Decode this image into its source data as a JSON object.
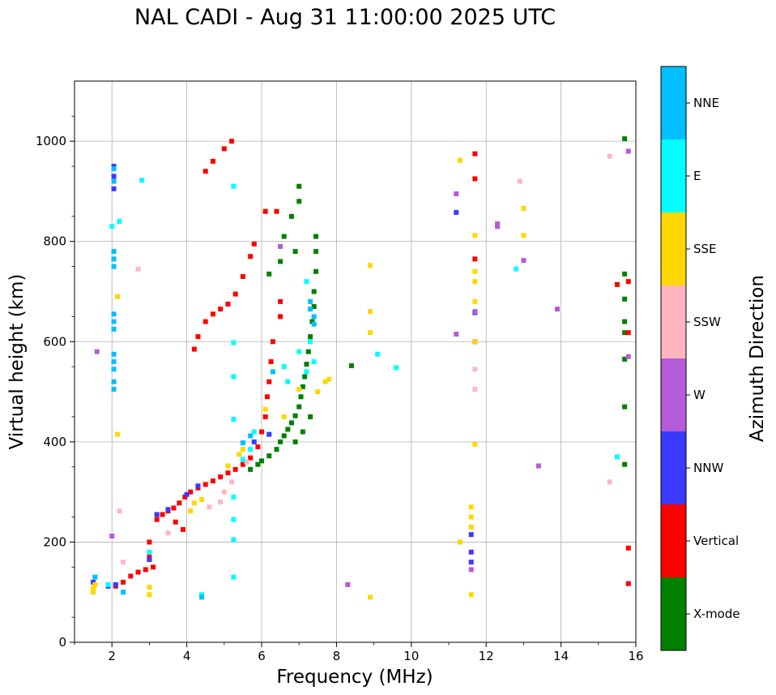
{
  "chart_data": {
    "type": "scatter",
    "title": "NAL CADI - Aug 31 11:00:00 2025 UTC",
    "xlabel": "Frequency (MHz)",
    "ylabel": "Virtual height (km)",
    "xlim": [
      1,
      16
    ],
    "ylim": [
      0,
      1120
    ],
    "xticks": [
      2,
      4,
      6,
      8,
      10,
      12,
      14,
      16
    ],
    "yticks": [
      0,
      200,
      400,
      600,
      800,
      1000
    ],
    "grid": true,
    "colorbar": {
      "label": "Azimuth Direction",
      "categories": [
        {
          "name": "X-mode",
          "color": "#008000"
        },
        {
          "name": "Vertical",
          "color": "#ff0000"
        },
        {
          "name": "NNW",
          "color": "#3a3aff"
        },
        {
          "name": "W",
          "color": "#b55ad8"
        },
        {
          "name": "SSW",
          "color": "#ffb6c1"
        },
        {
          "name": "SSE",
          "color": "#ffd700"
        },
        {
          "name": "E",
          "color": "#00ffff"
        },
        {
          "name": "NNE",
          "color": "#00bfff"
        }
      ]
    },
    "series": [
      {
        "name": "X-mode",
        "points": [
          [
            5.7,
            345
          ],
          [
            5.9,
            355
          ],
          [
            6.0,
            362
          ],
          [
            6.2,
            372
          ],
          [
            6.4,
            385
          ],
          [
            6.5,
            400
          ],
          [
            6.6,
            412
          ],
          [
            6.7,
            425
          ],
          [
            6.8,
            438
          ],
          [
            6.9,
            452
          ],
          [
            7.0,
            470
          ],
          [
            7.05,
            490
          ],
          [
            7.1,
            510
          ],
          [
            7.15,
            530
          ],
          [
            7.2,
            555
          ],
          [
            7.25,
            580
          ],
          [
            7.3,
            610
          ],
          [
            7.35,
            640
          ],
          [
            7.4,
            670
          ],
          [
            7.4,
            700
          ],
          [
            7.45,
            740
          ],
          [
            7.45,
            780
          ],
          [
            7.45,
            810
          ],
          [
            7.0,
            880
          ],
          [
            7.0,
            910
          ],
          [
            6.8,
            850
          ],
          [
            6.9,
            780
          ],
          [
            6.5,
            760
          ],
          [
            6.2,
            735
          ],
          [
            6.6,
            810
          ],
          [
            7.3,
            450
          ],
          [
            7.1,
            420
          ],
          [
            6.9,
            400
          ],
          [
            15.7,
            1005
          ],
          [
            15.7,
            735
          ],
          [
            15.7,
            685
          ],
          [
            15.7,
            640
          ],
          [
            15.7,
            618
          ],
          [
            15.7,
            565
          ],
          [
            15.7,
            470
          ],
          [
            15.7,
            355
          ],
          [
            8.4,
            552
          ]
        ]
      },
      {
        "name": "Vertical",
        "points": [
          [
            2.1,
            112
          ],
          [
            2.3,
            120
          ],
          [
            2.5,
            132
          ],
          [
            2.7,
            140
          ],
          [
            2.9,
            145
          ],
          [
            3.1,
            150
          ],
          [
            3.2,
            245
          ],
          [
            3.35,
            255
          ],
          [
            3.5,
            262
          ],
          [
            3.65,
            268
          ],
          [
            3.8,
            278
          ],
          [
            3.95,
            290
          ],
          [
            4.1,
            300
          ],
          [
            4.3,
            308
          ],
          [
            4.5,
            315
          ],
          [
            4.7,
            322
          ],
          [
            4.9,
            330
          ],
          [
            5.1,
            338
          ],
          [
            5.3,
            345
          ],
          [
            5.5,
            355
          ],
          [
            5.7,
            368
          ],
          [
            5.9,
            390
          ],
          [
            6.0,
            420
          ],
          [
            6.1,
            450
          ],
          [
            6.15,
            490
          ],
          [
            6.2,
            520
          ],
          [
            6.25,
            560
          ],
          [
            6.3,
            600
          ],
          [
            6.5,
            650
          ],
          [
            6.5,
            680
          ],
          [
            6.1,
            860
          ],
          [
            6.4,
            860
          ],
          [
            4.2,
            585
          ],
          [
            4.3,
            610
          ],
          [
            4.5,
            640
          ],
          [
            4.7,
            655
          ],
          [
            4.9,
            665
          ],
          [
            5.1,
            675
          ],
          [
            5.3,
            695
          ],
          [
            5.5,
            730
          ],
          [
            5.7,
            770
          ],
          [
            5.8,
            795
          ],
          [
            4.5,
            940
          ],
          [
            4.7,
            960
          ],
          [
            5.0,
            985
          ],
          [
            5.2,
            1000
          ],
          [
            11.7,
            975
          ],
          [
            11.7,
            925
          ],
          [
            11.7,
            765
          ],
          [
            11.7,
            658
          ],
          [
            11.7,
            600
          ],
          [
            15.5,
            714
          ],
          [
            15.8,
            720
          ],
          [
            15.8,
            618
          ],
          [
            15.8,
            188
          ],
          [
            15.8,
            117
          ],
          [
            3.7,
            240
          ],
          [
            3.9,
            225
          ],
          [
            3.0,
            200
          ],
          [
            3.0,
            170
          ]
        ]
      },
      {
        "name": "NNW",
        "points": [
          [
            2.05,
            950
          ],
          [
            2.05,
            930
          ],
          [
            2.05,
            905
          ],
          [
            1.5,
            120
          ],
          [
            1.9,
            112
          ],
          [
            2.1,
            115
          ],
          [
            3.0,
            165
          ],
          [
            3.2,
            255
          ],
          [
            3.5,
            265
          ],
          [
            4.0,
            295
          ],
          [
            4.3,
            312
          ],
          [
            5.8,
            400
          ],
          [
            6.2,
            415
          ],
          [
            11.6,
            215
          ],
          [
            11.6,
            180
          ],
          [
            11.6,
            160
          ],
          [
            11.2,
            858
          ],
          [
            11.7,
            658
          ]
        ]
      },
      {
        "name": "W",
        "points": [
          [
            12.3,
            835
          ],
          [
            12.3,
            830
          ],
          [
            13.0,
            762
          ],
          [
            13.9,
            665
          ],
          [
            11.2,
            895
          ],
          [
            11.2,
            615
          ],
          [
            11.7,
            660
          ],
          [
            8.3,
            115
          ],
          [
            13.4,
            352
          ],
          [
            15.8,
            570
          ],
          [
            15.8,
            980
          ],
          [
            6.5,
            790
          ],
          [
            11.6,
            145
          ],
          [
            2.0,
            212
          ],
          [
            1.6,
            580
          ]
        ]
      },
      {
        "name": "SSW",
        "points": [
          [
            15.3,
            970
          ],
          [
            15.3,
            320
          ],
          [
            12.9,
            920
          ],
          [
            11.7,
            505
          ],
          [
            11.7,
            545
          ],
          [
            4.6,
            270
          ],
          [
            4.9,
            280
          ],
          [
            5.0,
            300
          ],
          [
            5.2,
            320
          ],
          [
            5.6,
            360
          ],
          [
            3.5,
            218
          ],
          [
            2.3,
            160
          ],
          [
            2.2,
            262
          ],
          [
            2.7,
            745
          ]
        ]
      },
      {
        "name": "SSE",
        "points": [
          [
            1.5,
            100
          ],
          [
            1.5,
            108
          ],
          [
            1.55,
            115
          ],
          [
            3.0,
            95
          ],
          [
            3.0,
            110
          ],
          [
            4.1,
            262
          ],
          [
            4.2,
            278
          ],
          [
            4.4,
            285
          ],
          [
            5.1,
            352
          ],
          [
            5.4,
            375
          ],
          [
            5.5,
            385
          ],
          [
            6.1,
            465
          ],
          [
            6.6,
            450
          ],
          [
            7.0,
            505
          ],
          [
            7.5,
            500
          ],
          [
            7.7,
            520
          ],
          [
            7.8,
            525
          ],
          [
            8.9,
            752
          ],
          [
            8.9,
            660
          ],
          [
            8.9,
            618
          ],
          [
            8.9,
            90
          ],
          [
            11.3,
            962
          ],
          [
            11.3,
            200
          ],
          [
            11.6,
            270
          ],
          [
            11.6,
            250
          ],
          [
            11.6,
            230
          ],
          [
            11.6,
            95
          ],
          [
            11.7,
            812
          ],
          [
            11.7,
            740
          ],
          [
            11.7,
            720
          ],
          [
            11.7,
            680
          ],
          [
            11.7,
            395
          ],
          [
            11.7,
            600
          ],
          [
            13.0,
            866
          ],
          [
            13.0,
            812
          ],
          [
            2.15,
            690
          ],
          [
            2.15,
            415
          ]
        ]
      },
      {
        "name": "E",
        "points": [
          [
            5.25,
            910
          ],
          [
            5.25,
            598
          ],
          [
            5.25,
            530
          ],
          [
            5.25,
            445
          ],
          [
            5.25,
            290
          ],
          [
            5.25,
            245
          ],
          [
            5.25,
            205
          ],
          [
            5.25,
            130
          ],
          [
            6.6,
            550
          ],
          [
            6.7,
            520
          ],
          [
            7.0,
            580
          ],
          [
            7.2,
            540
          ],
          [
            7.3,
            600
          ],
          [
            7.4,
            560
          ],
          [
            7.2,
            720
          ],
          [
            9.1,
            575
          ],
          [
            9.6,
            548
          ],
          [
            12.8,
            745
          ],
          [
            15.5,
            370
          ],
          [
            4.4,
            95
          ],
          [
            2.0,
            830
          ],
          [
            2.2,
            840
          ],
          [
            5.7,
            385
          ],
          [
            5.8,
            420
          ],
          [
            5.5,
            365
          ],
          [
            2.8,
            922
          ],
          [
            3.0,
            180
          ],
          [
            1.9,
            115
          ]
        ]
      },
      {
        "name": "NNE",
        "points": [
          [
            2.05,
            945
          ],
          [
            2.05,
            920
          ],
          [
            2.05,
            780
          ],
          [
            2.05,
            765
          ],
          [
            2.05,
            750
          ],
          [
            2.05,
            655
          ],
          [
            2.05,
            640
          ],
          [
            2.05,
            625
          ],
          [
            2.05,
            575
          ],
          [
            2.05,
            560
          ],
          [
            2.05,
            545
          ],
          [
            2.05,
            520
          ],
          [
            2.05,
            505
          ],
          [
            1.55,
            130
          ],
          [
            2.3,
            100
          ],
          [
            7.3,
            680
          ],
          [
            7.3,
            665
          ],
          [
            7.4,
            650
          ],
          [
            7.4,
            635
          ],
          [
            6.3,
            540
          ],
          [
            5.7,
            412
          ],
          [
            5.5,
            398
          ],
          [
            4.4,
            90
          ]
        ]
      }
    ]
  }
}
